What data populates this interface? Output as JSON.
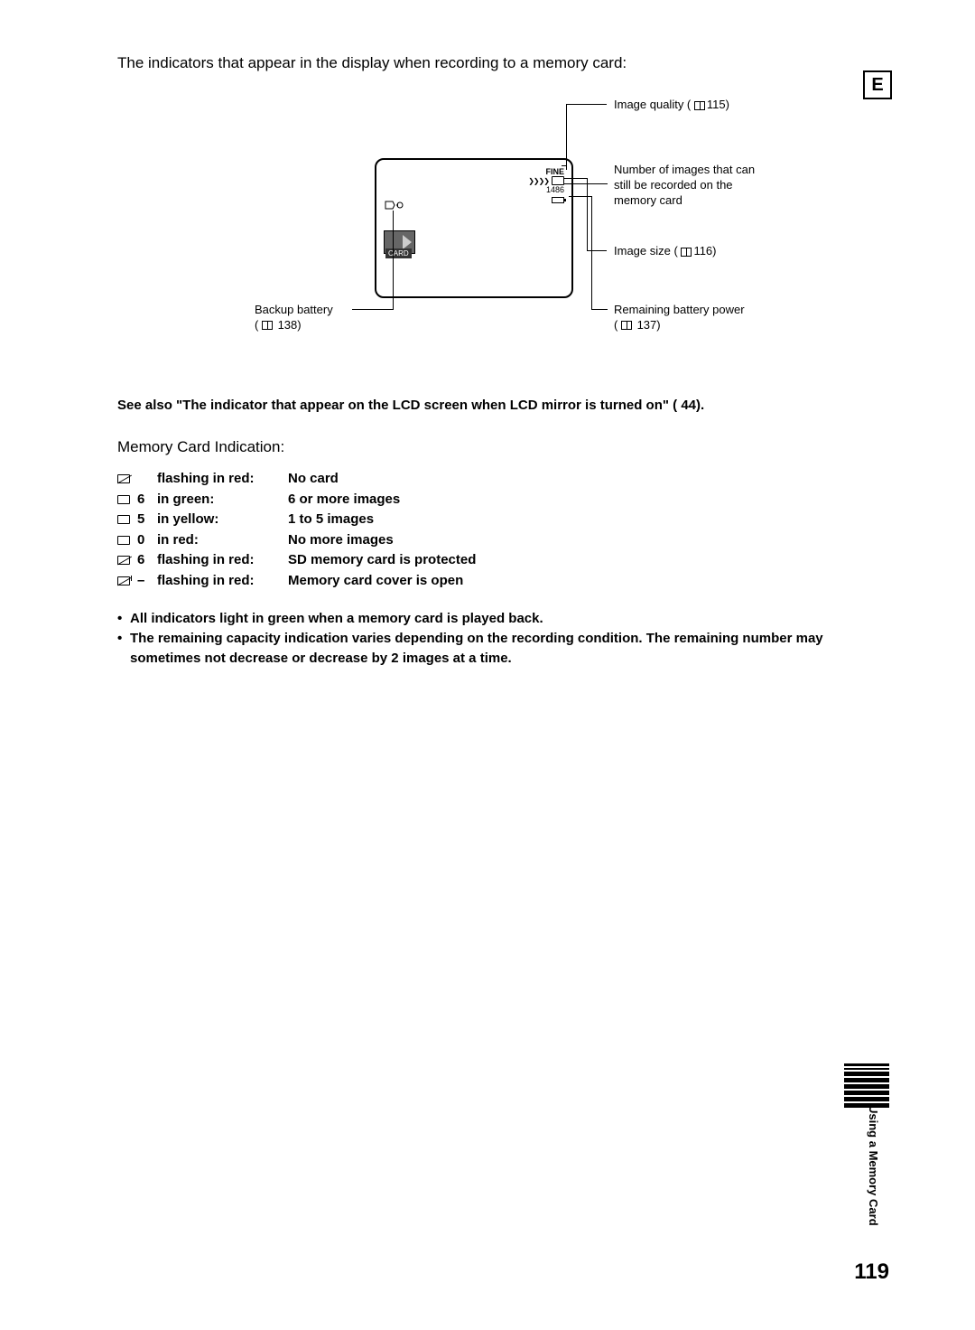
{
  "intro": "The indicators that appear in the display when recording to a memory card:",
  "lang_badge": "E",
  "display": {
    "fine": "FINE",
    "number": "1486",
    "card_label": "CARD"
  },
  "callouts": {
    "image_quality": "Image quality (",
    "image_quality_page": "115)",
    "num_images": "Number of images that can still be recorded on the memory card",
    "image_size": "Image size (",
    "image_size_page": "116)",
    "backup_battery": "Backup battery",
    "backup_battery_page": "138)",
    "remaining_battery": "Remaining battery power",
    "remaining_battery_page": "137)"
  },
  "see_also": "See also \"The indicator that appear on the LCD screen when LCD mirror is turned on\" (        44).",
  "mem_heading": "Memory Card Indication:",
  "indicators": [
    {
      "icon_type": "slash",
      "num": "",
      "status": "flashing in red:",
      "desc": "No card"
    },
    {
      "icon_type": "plain",
      "num": "6",
      "status": "in green:",
      "desc": "6 or more images"
    },
    {
      "icon_type": "plain",
      "num": "5",
      "status": "in yellow:",
      "desc": "1 to 5 images"
    },
    {
      "icon_type": "plain",
      "num": "0",
      "status": "in red:",
      "desc": "No more images"
    },
    {
      "icon_type": "slash",
      "num": "6",
      "status": "flashing in red:",
      "desc": "SD memory card is protected"
    },
    {
      "icon_type": "slash2",
      "num": "–",
      "status": "flashing in red:",
      "desc": "Memory card cover is open"
    }
  ],
  "bullets": [
    "All indicators light in green when a memory card is played back.",
    "The remaining capacity indication varies depending on the recording condition. The remaining number may sometimes not decrease or decrease by 2 images at a time."
  ],
  "side_label": "Using a Memory Card",
  "page_number": "119"
}
